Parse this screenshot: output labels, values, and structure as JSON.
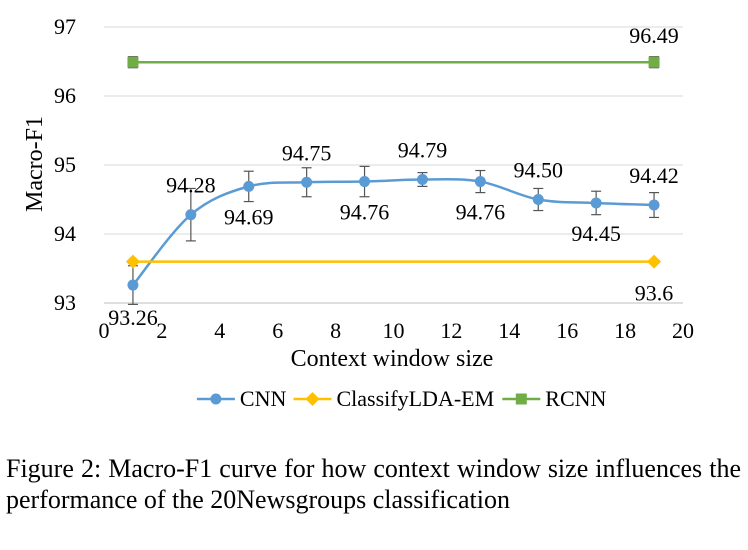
{
  "chart_data": {
    "type": "line",
    "title": "",
    "xlabel": "Context window size",
    "ylabel": "Macro-F1",
    "xlim": [
      0,
      20
    ],
    "ylim": [
      93,
      97
    ],
    "xticks": [
      0,
      2,
      4,
      6,
      8,
      10,
      12,
      14,
      16,
      18,
      20
    ],
    "yticks": [
      93,
      94,
      95,
      96,
      97
    ],
    "grid": "horizontal",
    "legend": "bottom",
    "series": [
      {
        "name": "CNN",
        "color": "#5B9BD5",
        "marker": "circle",
        "smooth": true,
        "x": [
          1,
          3,
          5,
          7,
          9,
          11,
          13,
          15,
          17,
          19
        ],
        "y": [
          93.26,
          94.28,
          94.69,
          94.75,
          94.76,
          94.79,
          94.76,
          94.5,
          94.45,
          94.42
        ],
        "err": [
          0.28,
          0.38,
          0.22,
          0.21,
          0.22,
          0.1,
          0.16,
          0.16,
          0.17,
          0.18
        ],
        "labels": [
          "93.26",
          "94.28",
          "94.69",
          "94.75",
          "94.76",
          "94.79",
          "94.76",
          "94.50",
          "94.45",
          "94.42"
        ],
        "label_pos": [
          "below",
          "above",
          "below",
          "above",
          "below",
          "above",
          "below",
          "above",
          "below",
          "above"
        ]
      },
      {
        "name": "ClassifyLDA-EM",
        "color": "#FFC000",
        "marker": "diamond",
        "x": [
          1,
          19
        ],
        "y": [
          93.6,
          93.6
        ],
        "err": [
          0,
          0
        ],
        "labels": [
          "",
          "93.6"
        ],
        "label_pos": [
          "none",
          "below"
        ]
      },
      {
        "name": "RCNN",
        "color": "#70AD47",
        "marker": "square",
        "x": [
          1,
          19
        ],
        "y": [
          96.49,
          96.49
        ],
        "err": [
          0.08,
          0.08
        ],
        "labels": [
          "",
          "96.49"
        ],
        "label_pos": [
          "none",
          "above"
        ]
      }
    ]
  },
  "caption": "Figure 2: Macro-F1 curve for how context window size influences the performance of the 20Newsgroups classification"
}
